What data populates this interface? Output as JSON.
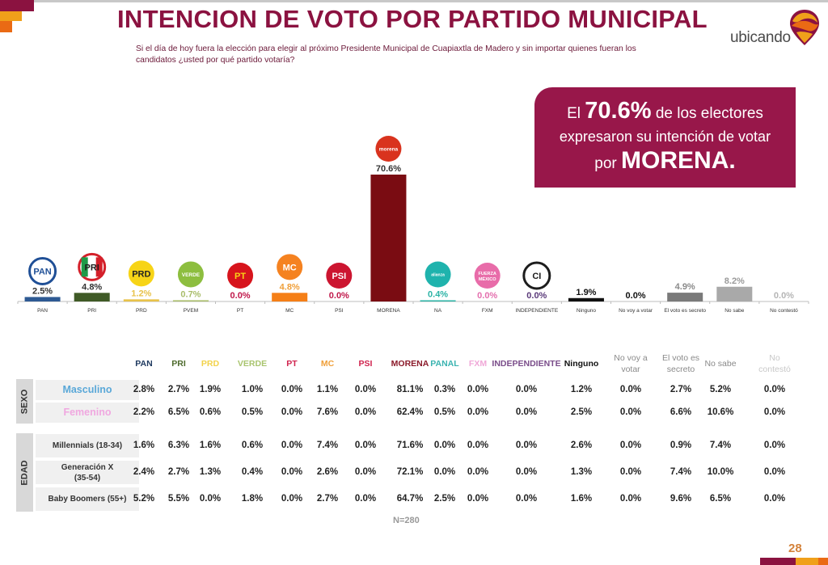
{
  "header": {
    "title": "INTENCION DE VOTO POR PARTIDO MUNICIPAL",
    "subtitle": "Si el día de hoy fuera la elección para elegir al próximo Presidente Municipal de Cuapiaxtla de Madero y sin importar quienes fueran los candidatos ¿usted por qué partido votaría?",
    "logo_text": "ubicando"
  },
  "callout": {
    "prefix": "El",
    "percent": "70.6%",
    "line1_suffix": "de los electores",
    "line2": "expresaron su intención de votar",
    "line3_prefix": "por",
    "party": "MORENA."
  },
  "colors": {
    "brand": "#8b1240",
    "callout_bg": "#98174a",
    "accent_yellow": "#f0a01a",
    "accent_orange": "#ea6a14"
  },
  "chart_data": {
    "type": "bar",
    "title": "INTENCION DE VOTO POR PARTIDO MUNICIPAL",
    "xlabel": "",
    "ylabel": "",
    "ylim": [
      0,
      75
    ],
    "grid": false,
    "legend": "none",
    "categories": [
      "PAN",
      "PRI",
      "PRD",
      "PVEM",
      "PT",
      "MC",
      "PSI",
      "MORENA",
      "NA",
      "FXM",
      "INDEPENDIENTE",
      "Ninguno",
      "No voy a votar",
      "El voto es secreto",
      "No sabe",
      "No contestó"
    ],
    "values": [
      2.5,
      4.8,
      1.2,
      0.7,
      0.0,
      4.8,
      0.0,
      70.6,
      0.4,
      0.0,
      0.0,
      1.9,
      0.0,
      4.9,
      8.2,
      0.0
    ],
    "data_labels": [
      "2.5%",
      "4.8%",
      "1.2%",
      "0.7%",
      "0.0%",
      "4.8%",
      "0.0%",
      "70.6%",
      "0.4%",
      "0.0%",
      "0.0%",
      "1.9%",
      "0.0%",
      "4.9%",
      "8.2%",
      "0.0%"
    ],
    "bar_colors": [
      "#2e5a93",
      "#3f5a26",
      "#e8c24a",
      "#a9bd6a",
      "#c8102e",
      "#f57f17",
      "#c8102e",
      "#7a0c12",
      "#2bb3a6",
      "#e46fae",
      "#5b3a7a",
      "#111111",
      "#222222",
      "#7a7a7a",
      "#a9a9a9",
      "#bdbdbd"
    ],
    "label_colors": [
      "#333333",
      "#333333",
      "#e8c24a",
      "#a9bd6a",
      "#c0184a",
      "#f0a03a",
      "#c0184a",
      "#333333",
      "#2bb3a6",
      "#e46fae",
      "#5b3a7a",
      "#111111",
      "#111111",
      "#8a8a8a",
      "#9a9a9a",
      "#b5b5b5"
    ],
    "party_logos": [
      {
        "name": "pan-logo-icon",
        "text": "PAN",
        "bg": "#ffffff",
        "ring": "#1f4f96",
        "fg": "#1f4f96"
      },
      {
        "name": "pri-logo-icon",
        "text": "PRI",
        "bg": "#ffffff",
        "ring": "#d4202a",
        "fg": "#1d1d1d"
      },
      {
        "name": "prd-logo-icon",
        "text": "PRD",
        "bg": "#f7d417",
        "ring": "#f7d417",
        "fg": "#222222"
      },
      {
        "name": "verde-logo-icon",
        "text": "VERDE",
        "bg": "#8dbe3f",
        "ring": "#8dbe3f",
        "fg": "#ffffff"
      },
      {
        "name": "pt-logo-icon",
        "text": "PT",
        "bg": "#d7141c",
        "ring": "#d7141c",
        "fg": "#f7d417"
      },
      {
        "name": "mc-logo-icon",
        "text": "MC",
        "bg": "#f58220",
        "ring": "#f58220",
        "fg": "#ffffff"
      },
      {
        "name": "psi-logo-icon",
        "text": "PSI",
        "bg": "#cc1530",
        "ring": "#cc1530",
        "fg": "#ffffff"
      },
      {
        "name": "morena-logo-icon",
        "text": "morena",
        "bg": "#d9331e",
        "ring": "#d9331e",
        "fg": "#ffffff"
      },
      {
        "name": "nueva-alianza-logo-icon",
        "text": "alianza",
        "bg": "#1fb3ad",
        "ring": "#1fb3ad",
        "fg": "#ffffff"
      },
      {
        "name": "fxm-logo-icon",
        "text": "FUERZA MÉXICO",
        "bg": "#e86ca9",
        "ring": "#e86ca9",
        "fg": "#ffffff"
      },
      {
        "name": "independiente-logo-icon",
        "text": "CI",
        "bg": "#ffffff",
        "ring": "#1d1d1d",
        "fg": "#1d1d1d"
      }
    ]
  },
  "table": {
    "columns": [
      {
        "label": "PAN",
        "color": "#1f3a60"
      },
      {
        "label": "PRI",
        "color": "#4d6a2c"
      },
      {
        "label": "PRD",
        "color": "#f2d24a"
      },
      {
        "label": "VERDE",
        "color": "#a9c46e"
      },
      {
        "label": "PT",
        "color": "#d0234e"
      },
      {
        "label": "MC",
        "color": "#f0a03a"
      },
      {
        "label": "PSI",
        "color": "#d0234e"
      },
      {
        "label": "MORENA",
        "color": "#8b1a2a"
      },
      {
        "label": "PANAL",
        "color": "#3ab3b0"
      },
      {
        "label": "FXM",
        "color": "#f0a8d8"
      },
      {
        "label": "INDEPENDIENTE",
        "color": "#7a4d8a"
      },
      {
        "label": "Ninguno",
        "color": "#111111"
      },
      {
        "label": "No voy a votar",
        "color": "#8a8a8a"
      },
      {
        "label": "El voto es secreto",
        "color": "#8a8a8a"
      },
      {
        "label": "No sabe",
        "color": "#8a8a8a"
      },
      {
        "label": "No contestó",
        "color": "#c8c8c8"
      }
    ],
    "groups": [
      {
        "label": "SEXO",
        "rows": [
          {
            "label": "Masculino",
            "color": "#5aa8d8",
            "values": [
              "2.8%",
              "2.7%",
              "1.9%",
              "1.0%",
              "0.0%",
              "1.1%",
              "0.0%",
              "81.1%",
              "0.3%",
              "0.0%",
              "0.0%",
              "1.2%",
              "0.0%",
              "2.7%",
              "5.2%",
              "0.0%"
            ]
          },
          {
            "label": "Femenino",
            "color": "#f0a8e0",
            "values": [
              "2.2%",
              "6.5%",
              "0.6%",
              "0.5%",
              "0.0%",
              "7.6%",
              "0.0%",
              "62.4%",
              "0.5%",
              "0.0%",
              "0.0%",
              "2.5%",
              "0.0%",
              "6.6%",
              "10.6%",
              "0.0%"
            ]
          }
        ]
      },
      {
        "label": "EDAD",
        "rows": [
          {
            "label": "Millennials (18-34)",
            "color": "#333333",
            "values": [
              "1.6%",
              "6.3%",
              "1.6%",
              "0.6%",
              "0.0%",
              "7.4%",
              "0.0%",
              "71.6%",
              "0.0%",
              "0.0%",
              "0.0%",
              "2.6%",
              "0.0%",
              "0.9%",
              "7.4%",
              "0.0%"
            ]
          },
          {
            "label": "Generación X (35-54)",
            "color": "#333333",
            "values": [
              "2.4%",
              "2.7%",
              "1.3%",
              "0.4%",
              "0.0%",
              "2.6%",
              "0.0%",
              "72.1%",
              "0.0%",
              "0.0%",
              "0.0%",
              "1.3%",
              "0.0%",
              "7.4%",
              "10.0%",
              "0.0%"
            ]
          },
          {
            "label": "Baby Boomers (55+)",
            "color": "#333333",
            "values": [
              "5.2%",
              "5.5%",
              "0.0%",
              "1.8%",
              "0.0%",
              "2.7%",
              "0.0%",
              "64.7%",
              "2.5%",
              "0.0%",
              "0.0%",
              "1.6%",
              "0.0%",
              "9.6%",
              "6.5%",
              "0.0%"
            ]
          }
        ]
      }
    ]
  },
  "footer": {
    "sample_size": "N=280",
    "page_number": "28"
  }
}
